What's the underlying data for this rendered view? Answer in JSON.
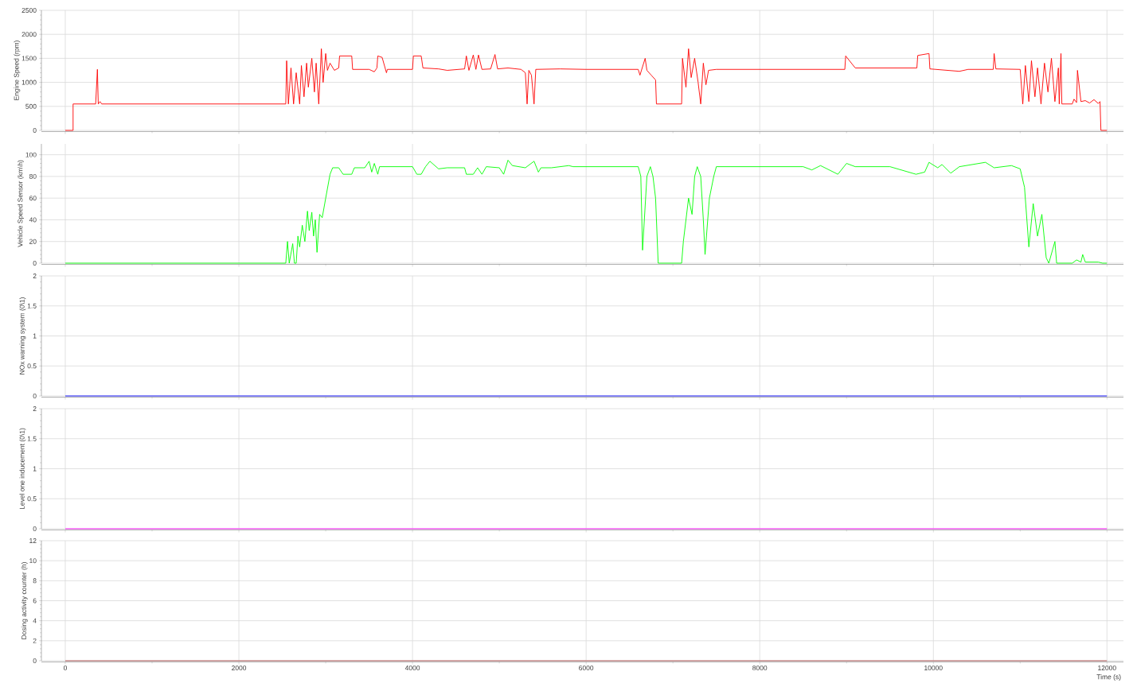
{
  "chart_data": [
    {
      "type": "line",
      "ylabel": "Engine Speed (rpm)",
      "xlim": [
        -275,
        12190
      ],
      "ylim": [
        0,
        2500
      ],
      "xticks": [
        0,
        2000,
        4000,
        6000,
        8000,
        10000,
        12000
      ],
      "yticks": [
        0,
        500,
        1000,
        1500,
        2000,
        2500
      ],
      "grid": true,
      "tick_labels": "y",
      "x": [
        0,
        90,
        90,
        350,
        370,
        380,
        400,
        420,
        2540,
        2550,
        2570,
        2600,
        2630,
        2660,
        2700,
        2720,
        2750,
        2780,
        2800,
        2840,
        2870,
        2890,
        2920,
        2950,
        2970,
        3000,
        3020,
        3050,
        3100,
        3150,
        3160,
        3300,
        3310,
        3500,
        3560,
        3590,
        3600,
        3650,
        3700,
        3710,
        4000,
        4010,
        4100,
        4120,
        4300,
        4400,
        4600,
        4620,
        4650,
        4700,
        4730,
        4760,
        4800,
        4900,
        4950,
        4980,
        5100,
        5250,
        5300,
        5320,
        5340,
        5370,
        5400,
        5420,
        5700,
        6000,
        6600,
        6620,
        6680,
        6700,
        6750,
        6800,
        6810,
        7100,
        7110,
        7150,
        7180,
        7210,
        7250,
        7290,
        7320,
        7350,
        7380,
        7410,
        7500,
        8000,
        8980,
        8990,
        9100,
        9810,
        9820,
        9950,
        9960,
        10300,
        10400,
        10690,
        10700,
        10720,
        11000,
        11030,
        11060,
        11100,
        11130,
        11170,
        11200,
        11240,
        11280,
        11320,
        11360,
        11400,
        11440,
        11450,
        11470,
        11480,
        11600,
        11620,
        11650,
        11660,
        11700,
        11750,
        11800,
        11850,
        11900,
        11920,
        11930,
        12000
      ],
      "series": [
        {
          "color": "#ff0000",
          "values": [
            0,
            0,
            550,
            550,
            1270,
            550,
            600,
            550,
            550,
            1450,
            550,
            1300,
            550,
            1200,
            550,
            1350,
            700,
            1400,
            900,
            1500,
            800,
            1400,
            550,
            1700,
            1000,
            1600,
            1250,
            1400,
            1250,
            1300,
            1550,
            1550,
            1270,
            1270,
            1220,
            1300,
            1550,
            1520,
            1200,
            1270,
            1270,
            1550,
            1550,
            1300,
            1280,
            1250,
            1280,
            1550,
            1250,
            1570,
            1270,
            1570,
            1270,
            1280,
            1580,
            1280,
            1300,
            1270,
            1200,
            550,
            1250,
            1150,
            550,
            1270,
            1280,
            1270,
            1270,
            1150,
            1500,
            1250,
            1150,
            1050,
            550,
            550,
            1500,
            900,
            1700,
            1100,
            1500,
            1000,
            550,
            1400,
            950,
            1250,
            1270,
            1270,
            1270,
            1550,
            1300,
            1300,
            1560,
            1600,
            1280,
            1230,
            1270,
            1270,
            1600,
            1280,
            1270,
            550,
            1350,
            600,
            1450,
            700,
            1300,
            550,
            1400,
            800,
            1500,
            600,
            1300,
            550,
            1600,
            550,
            550,
            650,
            580,
            1250,
            600,
            620,
            570,
            640,
            560,
            600,
            0,
            0
          ]
        }
      ]
    },
    {
      "type": "line",
      "ylabel": "Vehicle Speed Sensor (km\\h)",
      "xlim": [
        -275,
        12190
      ],
      "ylim": [
        0,
        110
      ],
      "xticks": [
        0,
        2000,
        4000,
        6000,
        8000,
        10000,
        12000
      ],
      "yticks": [
        0,
        20,
        40,
        60,
        80,
        100
      ],
      "grid": true,
      "tick_labels": "y",
      "x": [
        0,
        2540,
        2560,
        2580,
        2620,
        2640,
        2660,
        2680,
        2700,
        2730,
        2760,
        2790,
        2810,
        2840,
        2860,
        2880,
        2900,
        2930,
        2960,
        3000,
        3050,
        3080,
        3150,
        3200,
        3300,
        3330,
        3450,
        3500,
        3530,
        3560,
        3600,
        3620,
        4000,
        4050,
        4100,
        4150,
        4200,
        4300,
        4400,
        4600,
        4620,
        4700,
        4750,
        4800,
        4850,
        5000,
        5050,
        5100,
        5150,
        5300,
        5400,
        5450,
        5480,
        5600,
        5800,
        5850,
        6000,
        6600,
        6630,
        6650,
        6700,
        6740,
        6770,
        6800,
        6830,
        7100,
        7120,
        7180,
        7220,
        7250,
        7280,
        7320,
        7350,
        7370,
        7420,
        7470,
        7500,
        8500,
        8600,
        8700,
        8900,
        9000,
        9100,
        9500,
        9800,
        9900,
        9950,
        10050,
        10100,
        10200,
        10300,
        10600,
        10700,
        10900,
        11000,
        11050,
        11100,
        11150,
        11200,
        11250,
        11300,
        11330,
        11400,
        11420,
        11600,
        11650,
        11700,
        11720,
        11750,
        11900,
        11950,
        12000
      ],
      "series": [
        {
          "color": "#00ff00",
          "values": [
            0,
            0,
            20,
            0,
            18,
            0,
            0,
            25,
            15,
            35,
            20,
            48,
            30,
            47,
            25,
            40,
            10,
            45,
            42,
            60,
            82,
            88,
            88,
            82,
            82,
            88,
            88,
            94,
            84,
            92,
            82,
            89,
            89,
            82,
            82,
            89,
            94,
            87,
            88,
            88,
            82,
            82,
            88,
            82,
            89,
            88,
            82,
            95,
            90,
            88,
            94,
            84,
            88,
            88,
            90,
            89,
            89,
            89,
            80,
            12,
            80,
            89,
            80,
            60,
            0,
            0,
            20,
            60,
            45,
            80,
            89,
            80,
            40,
            8,
            60,
            80,
            89,
            89,
            86,
            90,
            82,
            92,
            89,
            89,
            82,
            84,
            93,
            88,
            91,
            83,
            89,
            93,
            88,
            90,
            87,
            70,
            15,
            55,
            25,
            45,
            5,
            0,
            20,
            0,
            0,
            3,
            1,
            8,
            1,
            1,
            0,
            0
          ]
        }
      ]
    },
    {
      "type": "line",
      "ylabel": "NOx warning system (0\\1)",
      "xlim": [
        -275,
        12190
      ],
      "ylim": [
        0,
        2
      ],
      "xticks": [
        0,
        2000,
        4000,
        6000,
        8000,
        10000,
        12000
      ],
      "yticks": [
        0,
        0.5,
        1,
        1.5,
        2
      ],
      "grid": true,
      "tick_labels": "y",
      "x": [
        0,
        12000
      ],
      "series": [
        {
          "color": "#0000ff",
          "values": [
            0,
            0
          ]
        }
      ]
    },
    {
      "type": "line",
      "ylabel": "Level one inducement (0\\1)",
      "xlim": [
        -275,
        12190
      ],
      "ylim": [
        0,
        2
      ],
      "xticks": [
        0,
        2000,
        4000,
        6000,
        8000,
        10000,
        12000
      ],
      "yticks": [
        0,
        0.5,
        1,
        1.5,
        2
      ],
      "grid": true,
      "tick_labels": "y",
      "x": [
        0,
        12000
      ],
      "series": [
        {
          "color": "#ff00ff",
          "values": [
            0,
            0
          ]
        }
      ]
    },
    {
      "type": "line",
      "ylabel": "Dosing activity counter (h)",
      "xlabel": "Time (s)",
      "xlim": [
        -275,
        12190
      ],
      "ylim": [
        0,
        12
      ],
      "xticks": [
        0,
        2000,
        4000,
        6000,
        8000,
        10000,
        12000
      ],
      "yticks": [
        0,
        2,
        4,
        6,
        8,
        10,
        12
      ],
      "grid": true,
      "x": [
        0,
        12000
      ],
      "series": [
        {
          "color": "#b04a4a",
          "values": [
            0,
            0
          ]
        }
      ]
    }
  ]
}
